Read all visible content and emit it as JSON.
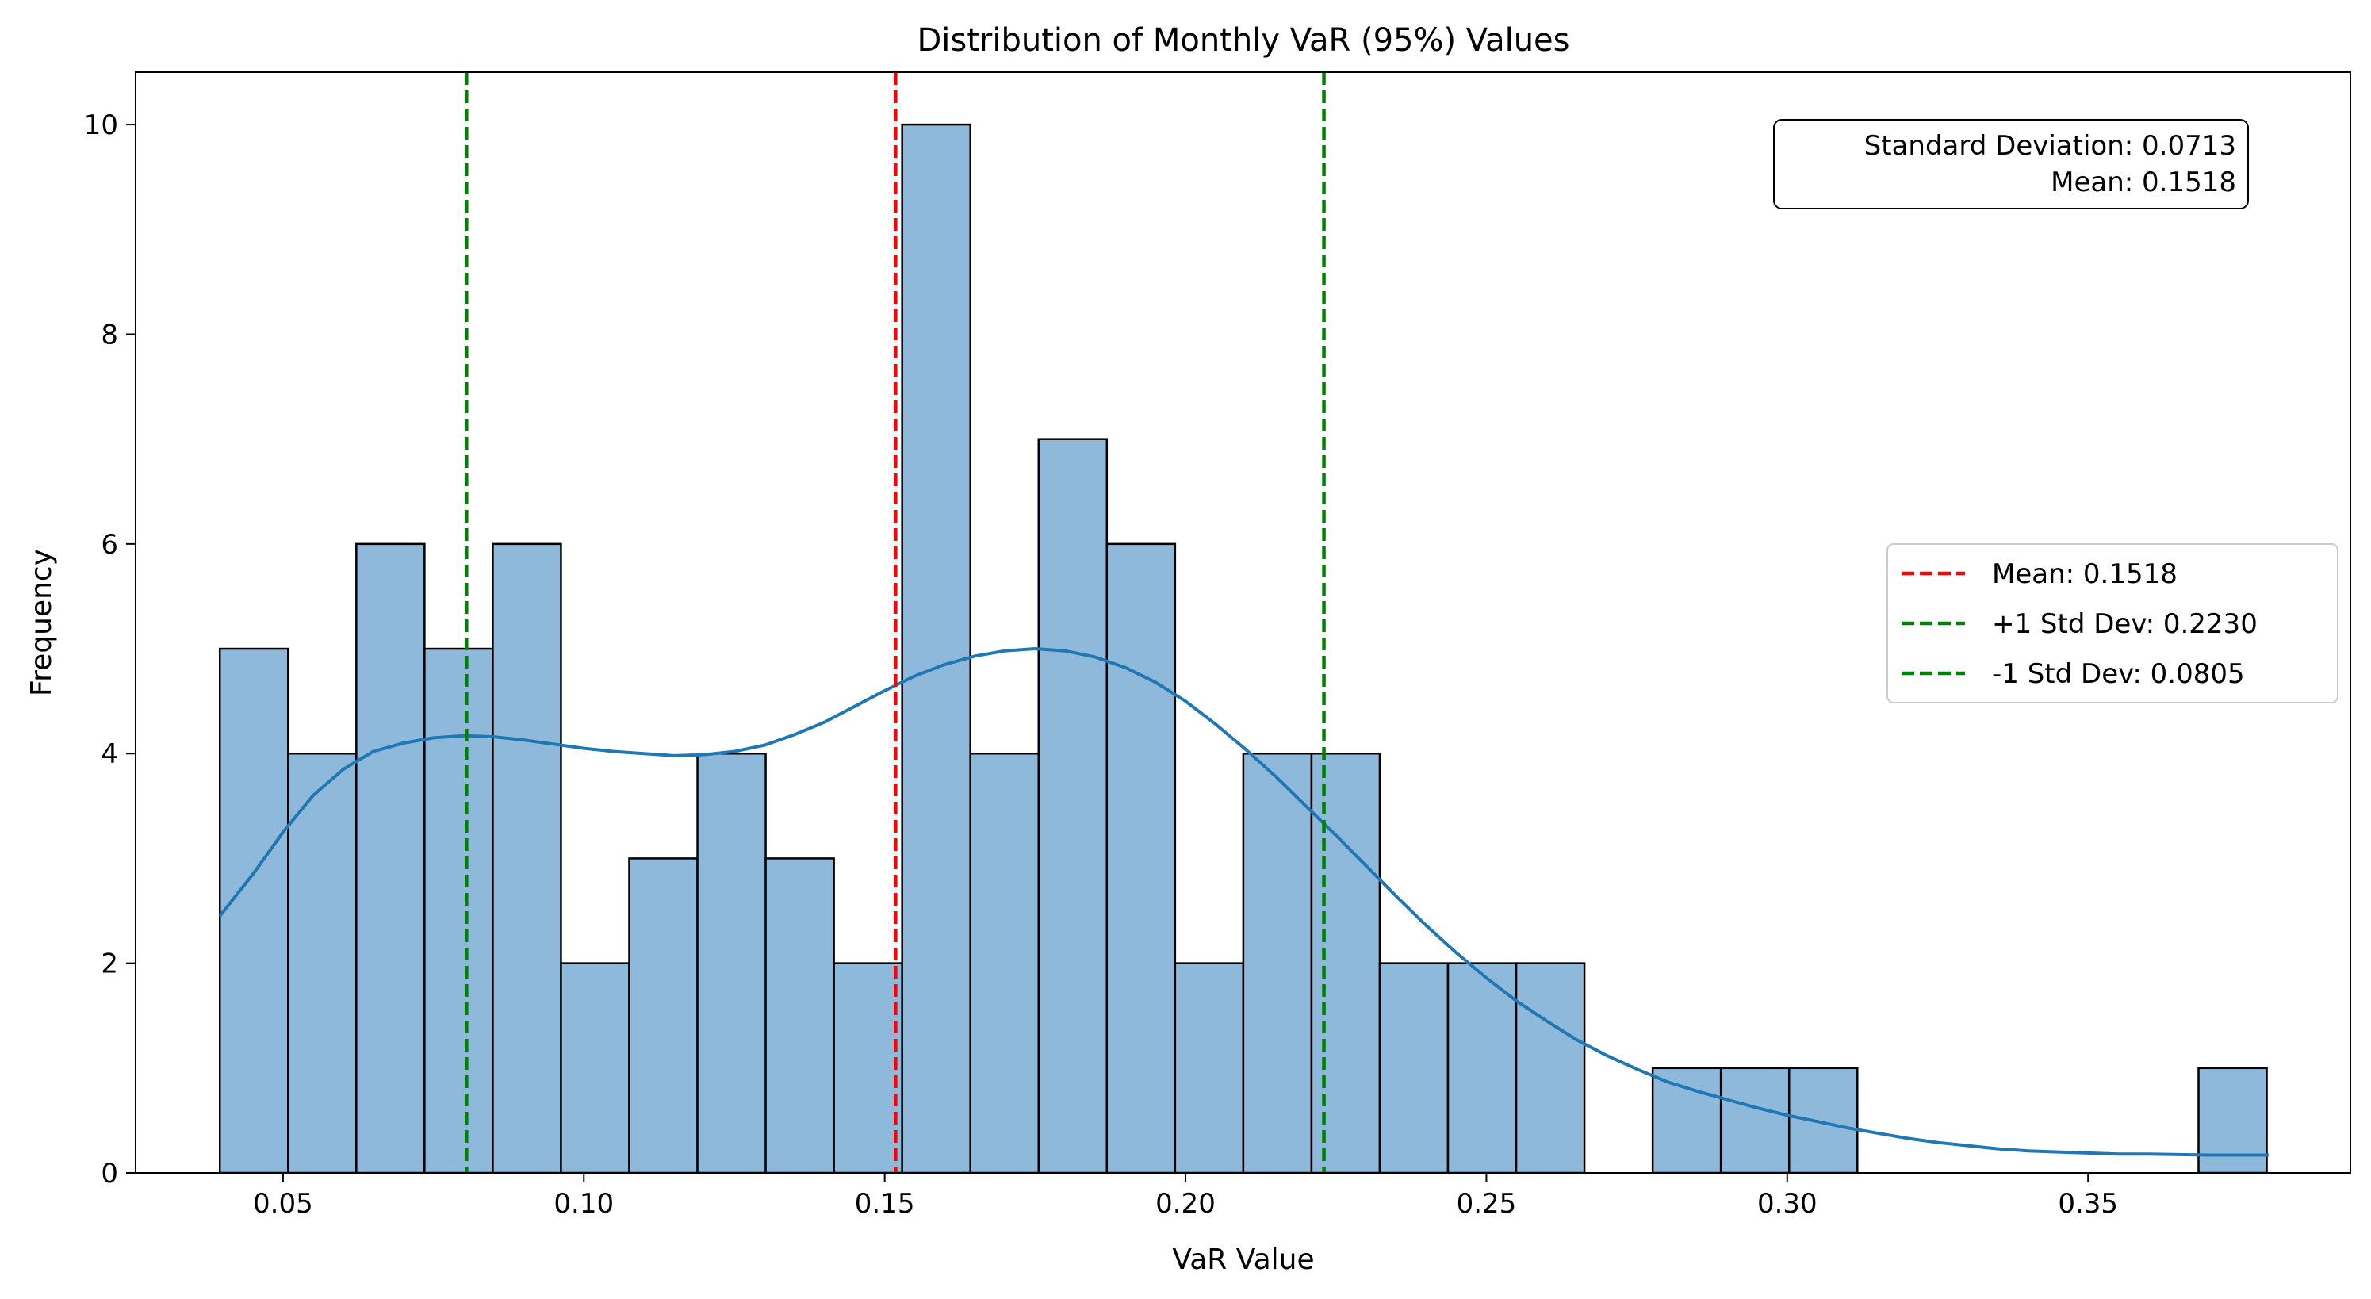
{
  "chart_data": {
    "type": "bar",
    "title": "Distribution of Monthly VaR (95%) Values",
    "xlabel": "VaR Value",
    "ylabel": "Frequency",
    "xlim": [
      0.0255,
      0.3936
    ],
    "ylim": [
      0,
      10.5
    ],
    "xticks": [
      0.05,
      0.1,
      0.15,
      0.2,
      0.25,
      0.3,
      0.35
    ],
    "xtick_labels": [
      "0.05",
      "0.10",
      "0.15",
      "0.20",
      "0.25",
      "0.30",
      "0.35"
    ],
    "yticks": [
      0,
      2,
      4,
      6,
      8,
      10
    ],
    "ytick_labels": [
      "0",
      "2",
      "4",
      "6",
      "8",
      "10"
    ],
    "grid": false,
    "histogram": {
      "bin_start": 0.0395,
      "bin_width": 0.01134,
      "counts": [
        5,
        4,
        6,
        5,
        6,
        2,
        3,
        4,
        3,
        2,
        10,
        4,
        7,
        6,
        2,
        4,
        4,
        2,
        2,
        2,
        0,
        1,
        1,
        1,
        0,
        0,
        0,
        0,
        0,
        1
      ],
      "fill_color": "#8fb9db",
      "edge_color": "#000000"
    },
    "kde": {
      "color": "#1f77b4",
      "x": [
        0.0395,
        0.045,
        0.05,
        0.055,
        0.06,
        0.065,
        0.07,
        0.075,
        0.08,
        0.085,
        0.09,
        0.095,
        0.1,
        0.105,
        0.11,
        0.115,
        0.12,
        0.125,
        0.13,
        0.135,
        0.14,
        0.145,
        0.15,
        0.155,
        0.16,
        0.165,
        0.17,
        0.175,
        0.18,
        0.185,
        0.19,
        0.195,
        0.2,
        0.205,
        0.21,
        0.215,
        0.22,
        0.225,
        0.23,
        0.235,
        0.24,
        0.245,
        0.25,
        0.255,
        0.26,
        0.265,
        0.27,
        0.275,
        0.28,
        0.285,
        0.29,
        0.295,
        0.3,
        0.305,
        0.31,
        0.315,
        0.32,
        0.325,
        0.33,
        0.335,
        0.34,
        0.345,
        0.35,
        0.355,
        0.36,
        0.365,
        0.37,
        0.375,
        0.38
      ],
      "y": [
        2.45,
        2.85,
        3.25,
        3.6,
        3.85,
        4.02,
        4.1,
        4.15,
        4.17,
        4.16,
        4.13,
        4.09,
        4.05,
        4.02,
        4.0,
        3.98,
        3.99,
        4.02,
        4.08,
        4.18,
        4.3,
        4.45,
        4.6,
        4.74,
        4.85,
        4.93,
        4.98,
        5.0,
        4.98,
        4.92,
        4.82,
        4.68,
        4.5,
        4.28,
        4.04,
        3.78,
        3.5,
        3.22,
        2.93,
        2.64,
        2.36,
        2.1,
        1.86,
        1.64,
        1.45,
        1.27,
        1.12,
        0.99,
        0.87,
        0.78,
        0.7,
        0.62,
        0.55,
        0.49,
        0.43,
        0.38,
        0.33,
        0.29,
        0.26,
        0.23,
        0.21,
        0.2,
        0.19,
        0.18,
        0.18,
        0.175,
        0.17,
        0.17,
        0.17
      ]
    },
    "reference_lines": [
      {
        "x": 0.1518,
        "label": "Mean: 0.1518",
        "color": "#ff0000",
        "style": "dashed"
      },
      {
        "x": 0.223,
        "label": "+1 Std Dev: 0.2230",
        "color": "#008000",
        "style": "dashed"
      },
      {
        "x": 0.0805,
        "label": "-1 Std Dev: 0.0805",
        "color": "#008000",
        "style": "dashed"
      }
    ],
    "legend_position": "center-right",
    "stats_box": {
      "position": "top-right",
      "line1": "Standard Deviation: 0.0713",
      "line2": "Mean: 0.1518"
    }
  }
}
